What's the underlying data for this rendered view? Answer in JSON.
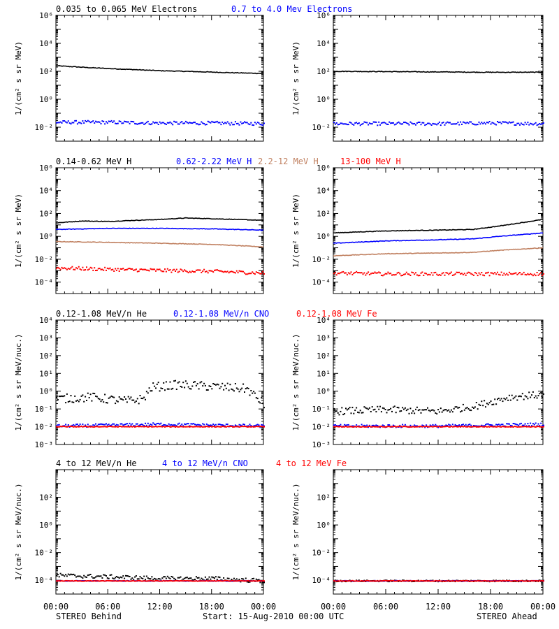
{
  "colors": {
    "black": "#000000",
    "blue": "#0000ff",
    "tan": "#c08060",
    "red": "#ff0000"
  },
  "footer": {
    "left": "STEREO Behind",
    "center": "Start: 15-Aug-2010 00:00 UTC",
    "right": "STEREO Ahead"
  },
  "x_ticks": [
    "00:00",
    "06:00",
    "12:00",
    "18:00",
    "00:00"
  ],
  "rows": [
    {
      "legend": [
        {
          "text": "0.035 to 0.065 MeV Electrons",
          "color": "#000000"
        },
        {
          "text": "0.7 to 4.0 Mev Electrons",
          "color": "#0000ff"
        }
      ],
      "ylabel": "1/(cm² s sr MeV)",
      "y_log_range": [
        -3,
        6
      ],
      "y_tick_exps": [
        -2,
        0,
        2,
        4,
        6
      ]
    },
    {
      "legend": [
        {
          "text": "0.14-0.62 MeV H",
          "color": "#000000"
        },
        {
          "text": "0.62-2.22 MeV H",
          "color": "#0000ff"
        },
        {
          "text": "2.2-12 MeV H",
          "color": "#c08060"
        },
        {
          "text": "13-100 MeV H",
          "color": "#ff0000"
        }
      ],
      "ylabel": "1/(cm² s sr MeV)",
      "y_log_range": [
        -5,
        6
      ],
      "y_tick_exps": [
        -4,
        -2,
        0,
        2,
        4,
        6
      ]
    },
    {
      "legend": [
        {
          "text": "0.12-1.08 MeV/n He",
          "color": "#000000"
        },
        {
          "text": "0.12-1.08 MeV/n CNO",
          "color": "#0000ff"
        },
        {
          "text": "0.12-1.08 MeV Fe",
          "color": "#ff0000"
        }
      ],
      "ylabel": "1/(cm² s sr MeV/nuc.)",
      "y_log_range": [
        -3,
        4
      ],
      "y_tick_exps": [
        -3,
        -2,
        -1,
        0,
        1,
        2,
        3,
        4
      ]
    },
    {
      "legend": [
        {
          "text": "4 to 12 MeV/n He",
          "color": "#000000"
        },
        {
          "text": "4 to 12 MeV/n CNO",
          "color": "#0000ff"
        },
        {
          "text": "4 to 12 MeV Fe",
          "color": "#ff0000"
        }
      ],
      "ylabel": "1/(cm² s sr MeV/nuc.)",
      "y_log_range": [
        -5,
        4
      ],
      "y_tick_exps": [
        -4,
        -2,
        0,
        2
      ]
    }
  ],
  "chart_data": [
    {
      "type": "line",
      "panel": "behind-row1",
      "x_range_hours": [
        0,
        24
      ],
      "ylog": true,
      "ylim": [
        0.001,
        1000000
      ],
      "series": [
        {
          "name": "0.035 to 0.065 MeV Electrons",
          "color": "#000000",
          "style": "line",
          "x": [
            0,
            4,
            8,
            12,
            16,
            20,
            24
          ],
          "y": [
            250,
            180,
            140,
            110,
            95,
            80,
            70
          ]
        },
        {
          "name": "0.7 to 4.0 Mev Electrons",
          "color": "#0000ff",
          "style": "dots",
          "x": [
            0,
            6,
            12,
            18,
            24
          ],
          "y": [
            0.025,
            0.025,
            0.022,
            0.022,
            0.02
          ],
          "spread": 0.12
        }
      ]
    },
    {
      "type": "line",
      "panel": "ahead-row1",
      "x_range_hours": [
        0,
        24
      ],
      "ylog": true,
      "ylim": [
        0.001,
        1000000
      ],
      "series": [
        {
          "name": "0.035 to 0.065 MeV Electrons",
          "color": "#000000",
          "style": "line",
          "x": [
            0,
            6,
            12,
            18,
            24
          ],
          "y": [
            100,
            95,
            90,
            85,
            85
          ]
        },
        {
          "name": "0.7 to 4.0 Mev Electrons",
          "color": "#0000ff",
          "style": "dots",
          "x": [
            0,
            6,
            12,
            18,
            24
          ],
          "y": [
            0.02,
            0.02,
            0.02,
            0.022,
            0.02
          ],
          "spread": 0.12
        }
      ]
    },
    {
      "type": "line",
      "panel": "behind-row2",
      "x_range_hours": [
        0,
        24
      ],
      "ylog": true,
      "ylim": [
        1e-05,
        1000000
      ],
      "series": [
        {
          "name": "0.14-0.62 MeV H",
          "color": "#000000",
          "style": "line",
          "x": [
            0,
            3,
            6,
            9,
            12,
            15,
            18,
            21,
            24
          ],
          "y": [
            15,
            22,
            20,
            25,
            30,
            40,
            35,
            30,
            25
          ]
        },
        {
          "name": "0.62-2.22 MeV H",
          "color": "#0000ff",
          "style": "line",
          "x": [
            0,
            6,
            12,
            18,
            24
          ],
          "y": [
            4,
            5,
            5,
            4.5,
            3.5
          ]
        },
        {
          "name": "2.2-12 MeV H",
          "color": "#c08060",
          "style": "line",
          "x": [
            0,
            6,
            12,
            18,
            24
          ],
          "y": [
            0.35,
            0.3,
            0.25,
            0.2,
            0.12
          ]
        },
        {
          "name": "13-100 MeV H",
          "color": "#ff0000",
          "style": "dots",
          "x": [
            0,
            6,
            12,
            18,
            24
          ],
          "y": [
            0.002,
            0.0015,
            0.0012,
            0.001,
            0.0007
          ],
          "spread": 0.15
        }
      ]
    },
    {
      "type": "line",
      "panel": "ahead-row2",
      "x_range_hours": [
        0,
        24
      ],
      "ylog": true,
      "ylim": [
        1e-05,
        1000000
      ],
      "series": [
        {
          "name": "0.14-0.62 MeV H",
          "color": "#000000",
          "style": "line",
          "x": [
            0,
            6,
            12,
            16,
            19,
            24
          ],
          "y": [
            2,
            3,
            3.5,
            4,
            8,
            30
          ]
        },
        {
          "name": "0.62-2.22 MeV H",
          "color": "#0000ff",
          "style": "line",
          "x": [
            0,
            6,
            12,
            16,
            19,
            24
          ],
          "y": [
            0.25,
            0.4,
            0.5,
            0.6,
            1,
            2
          ]
        },
        {
          "name": "2.2-12 MeV H",
          "color": "#c08060",
          "style": "line",
          "x": [
            0,
            6,
            12,
            16,
            19,
            24
          ],
          "y": [
            0.02,
            0.03,
            0.035,
            0.04,
            0.06,
            0.1
          ]
        },
        {
          "name": "13-100 MeV H",
          "color": "#ff0000",
          "style": "dots",
          "x": [
            0,
            6,
            12,
            18,
            24
          ],
          "y": [
            0.0007,
            0.0006,
            0.0006,
            0.0006,
            0.0006
          ],
          "spread": 0.15
        }
      ]
    },
    {
      "type": "scatter",
      "panel": "behind-row3",
      "x_range_hours": [
        0,
        24
      ],
      "ylog": true,
      "ylim": [
        0.001,
        10000
      ],
      "series": [
        {
          "name": "0.12-1.08 MeV/n He",
          "color": "#000000",
          "style": "dots",
          "x": [
            0,
            4,
            8,
            10,
            11,
            14,
            18,
            22,
            24
          ],
          "y": [
            0.4,
            0.5,
            0.3,
            0.4,
            1.8,
            2.5,
            2,
            1.5,
            0.2
          ],
          "spread": 0.25
        },
        {
          "name": "0.12-1.08 MeV/n CNO",
          "color": "#0000ff",
          "style": "dots",
          "x": [
            0,
            12,
            24
          ],
          "y": [
            0.012,
            0.015,
            0.012
          ],
          "spread": 0.08
        },
        {
          "name": "0.12-1.08 MeV Fe",
          "color": "#ff0000",
          "style": "dots",
          "x": [
            0,
            12,
            24
          ],
          "y": [
            0.011,
            0.011,
            0.011
          ],
          "spread": 0.02
        }
      ]
    },
    {
      "type": "scatter",
      "panel": "ahead-row3",
      "x_range_hours": [
        0,
        24
      ],
      "ylog": true,
      "ylim": [
        0.001,
        10000
      ],
      "series": [
        {
          "name": "0.12-1.08 MeV/n He",
          "color": "#000000",
          "style": "dots",
          "x": [
            0,
            6,
            12,
            16,
            20,
            24
          ],
          "y": [
            0.08,
            0.1,
            0.08,
            0.15,
            0.5,
            0.7
          ],
          "spread": 0.2
        },
        {
          "name": "0.12-1.08 MeV/n CNO",
          "color": "#0000ff",
          "style": "dots",
          "x": [
            0,
            12,
            24
          ],
          "y": [
            0.012,
            0.012,
            0.015
          ],
          "spread": 0.08
        },
        {
          "name": "0.12-1.08 MeV Fe",
          "color": "#ff0000",
          "style": "dots",
          "x": [
            0,
            12,
            24
          ],
          "y": [
            0.011,
            0.011,
            0.011
          ],
          "spread": 0.02
        }
      ]
    },
    {
      "type": "scatter",
      "panel": "behind-row4",
      "x_range_hours": [
        0,
        24
      ],
      "ylog": true,
      "ylim": [
        1e-05,
        10000
      ],
      "series": [
        {
          "name": "4 to 12 MeV/n He",
          "color": "#000000",
          "style": "dots",
          "x": [
            0,
            6,
            12,
            18,
            24
          ],
          "y": [
            0.00025,
            0.0002,
            0.00015,
            0.00015,
            0.0001
          ],
          "spread": 0.15
        },
        {
          "name": "4 to 12 MeV/n CNO",
          "color": "#0000ff",
          "style": "dots",
          "x": [
            0,
            24
          ],
          "y": [
            0.0001,
            0.0001
          ],
          "spread": 0.02
        },
        {
          "name": "4 to 12 MeV Fe",
          "color": "#ff0000",
          "style": "dots",
          "x": [
            0,
            24
          ],
          "y": [
            0.0001,
            0.0001
          ],
          "spread": 0.02
        }
      ]
    },
    {
      "type": "scatter",
      "panel": "ahead-row4",
      "x_range_hours": [
        0,
        24
      ],
      "ylog": true,
      "ylim": [
        1e-05,
        10000
      ],
      "series": [
        {
          "name": "4 to 12 MeV/n He",
          "color": "#000000",
          "style": "dots",
          "x": [
            0,
            12,
            24
          ],
          "y": [
            0.0001,
            0.0001,
            0.0001
          ],
          "spread": 0.05
        },
        {
          "name": "4 to 12 MeV/n CNO",
          "color": "#0000ff",
          "style": "dots",
          "x": [
            0,
            24
          ],
          "y": [
            0.0001,
            0.0001
          ],
          "spread": 0.02
        },
        {
          "name": "4 to 12 MeV Fe",
          "color": "#ff0000",
          "style": "dots",
          "x": [
            0,
            24
          ],
          "y": [
            0.0001,
            0.0001
          ],
          "spread": 0.02
        }
      ]
    }
  ]
}
